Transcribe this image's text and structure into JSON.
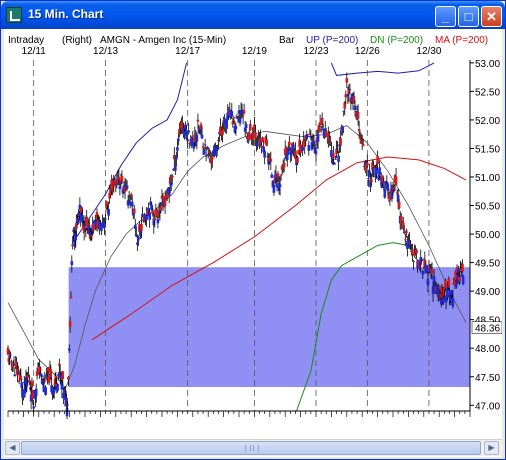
{
  "window": {
    "title": "15 Min. Chart",
    "min_label": "_",
    "max_label": "□",
    "close_label": "✕",
    "icon": "chart-app-icon"
  },
  "header": {
    "period": "Intraday",
    "axis_side": "(Right)",
    "instrument": "AMGN - Amgen Inc  (15-Min)",
    "style": "Bar",
    "up_label": "UP (P=200)",
    "dn_label": "DN (P=200)",
    "ma_label": "MA (P=200)"
  },
  "colors": {
    "up_band": "#1f1fa8",
    "dn_band": "#1a8a1a",
    "ma": "#d01010",
    "thin_line": "#555555",
    "bar_up": "#1e2bd8",
    "bar_down": "#d41c1c",
    "highlight": "#7c7cf2"
  },
  "chart_data": {
    "type": "bar",
    "y_axis_side": "right",
    "ylim": [
      46.9,
      53.05
    ],
    "y_ticks": [
      "53.00",
      "52.50",
      "52.00",
      "51.50",
      "51.00",
      "50.50",
      "50.00",
      "49.50",
      "49.00",
      "48.50",
      "48.00",
      "47.50",
      "47.00"
    ],
    "current_price": "48.36",
    "date_ticks": [
      "12/11",
      "12/13",
      "12/17",
      "12/19",
      "12/23",
      "12/26",
      "12/30"
    ],
    "highlight_zone": {
      "low": 47.32,
      "high": 49.42
    },
    "price_series": [
      {
        "t": 0.0,
        "p": 47.85
      },
      {
        "t": 0.5,
        "p": 47.7
      },
      {
        "t": 1.0,
        "p": 47.55
      },
      {
        "t": 1.5,
        "p": 47.25
      },
      {
        "t": 2.0,
        "p": 47.5
      },
      {
        "t": 2.5,
        "p": 47.1
      },
      {
        "t": 3.0,
        "p": 47.65
      },
      {
        "t": 3.5,
        "p": 47.35
      },
      {
        "t": 4.0,
        "p": 47.5
      },
      {
        "t": 4.5,
        "p": 47.3
      },
      {
        "t": 5.0,
        "p": 47.6
      },
      {
        "t": 5.5,
        "p": 47.2
      },
      {
        "t": 5.8,
        "p": 47.05
      },
      {
        "t": 6.3,
        "p": 49.9
      },
      {
        "t": 6.6,
        "p": 50.1
      },
      {
        "t": 7.0,
        "p": 50.4
      },
      {
        "t": 7.5,
        "p": 50.1
      },
      {
        "t": 8.0,
        "p": 50.0
      },
      {
        "t": 8.5,
        "p": 50.2
      },
      {
        "t": 9.0,
        "p": 50.15
      },
      {
        "t": 9.6,
        "p": 50.35
      },
      {
        "t": 10.2,
        "p": 50.85
      },
      {
        "t": 10.8,
        "p": 50.95
      },
      {
        "t": 11.4,
        "p": 50.8
      },
      {
        "t": 12.0,
        "p": 50.6
      },
      {
        "t": 12.6,
        "p": 49.9
      },
      {
        "t": 13.2,
        "p": 50.3
      },
      {
        "t": 13.8,
        "p": 50.5
      },
      {
        "t": 14.4,
        "p": 50.3
      },
      {
        "t": 15.0,
        "p": 50.5
      },
      {
        "t": 15.6,
        "p": 50.7
      },
      {
        "t": 16.2,
        "p": 51.2
      },
      {
        "t": 16.8,
        "p": 51.9
      },
      {
        "t": 17.4,
        "p": 51.8
      },
      {
        "t": 18.0,
        "p": 51.6
      },
      {
        "t": 18.6,
        "p": 51.9
      },
      {
        "t": 19.2,
        "p": 51.5
      },
      {
        "t": 19.8,
        "p": 51.3
      },
      {
        "t": 20.4,
        "p": 51.6
      },
      {
        "t": 21.0,
        "p": 51.9
      },
      {
        "t": 21.6,
        "p": 52.1
      },
      {
        "t": 22.2,
        "p": 51.9
      },
      {
        "t": 22.8,
        "p": 52.2
      },
      {
        "t": 23.4,
        "p": 51.7
      },
      {
        "t": 24.0,
        "p": 51.8
      },
      {
        "t": 24.6,
        "p": 51.55
      },
      {
        "t": 25.2,
        "p": 51.5
      },
      {
        "t": 25.8,
        "p": 51.0
      },
      {
        "t": 26.4,
        "p": 50.9
      },
      {
        "t": 27.0,
        "p": 51.3
      },
      {
        "t": 27.6,
        "p": 51.5
      },
      {
        "t": 28.2,
        "p": 51.35
      },
      {
        "t": 28.8,
        "p": 51.6
      },
      {
        "t": 29.4,
        "p": 51.7
      },
      {
        "t": 30.0,
        "p": 51.5
      },
      {
        "t": 30.6,
        "p": 52.0
      },
      {
        "t": 31.2,
        "p": 51.7
      },
      {
        "t": 31.8,
        "p": 51.3
      },
      {
        "t": 32.4,
        "p": 51.6
      },
      {
        "t": 33.0,
        "p": 52.6
      },
      {
        "t": 33.6,
        "p": 52.3
      },
      {
        "t": 34.2,
        "p": 51.9
      },
      {
        "t": 34.8,
        "p": 51.2
      },
      {
        "t": 35.4,
        "p": 51.0
      },
      {
        "t": 36.0,
        "p": 51.2
      },
      {
        "t": 36.6,
        "p": 50.9
      },
      {
        "t": 37.2,
        "p": 50.7
      },
      {
        "t": 37.8,
        "p": 50.8
      },
      {
        "t": 38.4,
        "p": 50.1
      },
      {
        "t": 39.0,
        "p": 49.8
      },
      {
        "t": 39.6,
        "p": 49.6
      },
      {
        "t": 40.2,
        "p": 49.5
      },
      {
        "t": 40.8,
        "p": 49.35
      },
      {
        "t": 41.4,
        "p": 49.2
      },
      {
        "t": 42.0,
        "p": 49.0
      },
      {
        "t": 42.4,
        "p": 48.8
      },
      {
        "t": 42.8,
        "p": 49.1
      },
      {
        "t": 43.2,
        "p": 48.9
      },
      {
        "t": 43.6,
        "p": 49.2
      },
      {
        "t": 44.0,
        "p": 49.3
      },
      {
        "t": 44.4,
        "p": 49.4
      }
    ],
    "series": [
      {
        "name": "UP (P=200)",
        "line": "up",
        "points": [
          {
            "t": 6.5,
            "p": 49.9
          },
          {
            "t": 8.0,
            "p": 50.3
          },
          {
            "t": 9.5,
            "p": 50.7
          },
          {
            "t": 11.0,
            "p": 51.2
          },
          {
            "t": 12.5,
            "p": 51.6
          },
          {
            "t": 14.0,
            "p": 51.85
          },
          {
            "t": 15.5,
            "p": 52.0
          },
          {
            "t": 16.5,
            "p": 52.35
          },
          {
            "t": 17.4,
            "p": 53.0
          }
        ]
      },
      {
        "name": "UP (P=200)",
        "line": "up2",
        "points": [
          {
            "t": 31.5,
            "p": 53.0
          },
          {
            "t": 32.0,
            "p": 52.78
          },
          {
            "t": 34.0,
            "p": 52.82
          },
          {
            "t": 36.0,
            "p": 52.85
          },
          {
            "t": 38.0,
            "p": 52.82
          },
          {
            "t": 40.0,
            "p": 52.86
          },
          {
            "t": 41.0,
            "p": 52.95
          },
          {
            "t": 41.5,
            "p": 53.0
          }
        ]
      },
      {
        "name": "DN (P=200)",
        "line": "dn",
        "points": [
          {
            "t": 28.1,
            "p": 46.9
          },
          {
            "t": 29.5,
            "p": 47.6
          },
          {
            "t": 30.5,
            "p": 48.6
          },
          {
            "t": 31.5,
            "p": 49.2
          },
          {
            "t": 32.5,
            "p": 49.45
          },
          {
            "t": 34.0,
            "p": 49.6
          },
          {
            "t": 36.0,
            "p": 49.8
          },
          {
            "t": 37.5,
            "p": 49.85
          },
          {
            "t": 39.0,
            "p": 49.8
          },
          {
            "t": 39.8,
            "p": 49.55
          }
        ]
      },
      {
        "name": "MA (P=200)",
        "line": "ma",
        "points": [
          {
            "t": 8.2,
            "p": 48.15
          },
          {
            "t": 12.0,
            "p": 48.6
          },
          {
            "t": 16.0,
            "p": 49.1
          },
          {
            "t": 20.0,
            "p": 49.5
          },
          {
            "t": 24.0,
            "p": 49.95
          },
          {
            "t": 28.0,
            "p": 50.5
          },
          {
            "t": 31.0,
            "p": 50.95
          },
          {
            "t": 34.0,
            "p": 51.25
          },
          {
            "t": 37.0,
            "p": 51.35
          },
          {
            "t": 40.0,
            "p": 51.3
          },
          {
            "t": 42.5,
            "p": 51.15
          },
          {
            "t": 44.6,
            "p": 50.95
          }
        ]
      },
      {
        "line": "thin",
        "points": [
          {
            "t": 0.0,
            "p": 48.8
          },
          {
            "t": 1.5,
            "p": 48.3
          },
          {
            "t": 3.0,
            "p": 47.8
          },
          {
            "t": 4.5,
            "p": 47.55
          },
          {
            "t": 5.6,
            "p": 47.3
          },
          {
            "t": 6.5,
            "p": 47.7
          },
          {
            "t": 7.5,
            "p": 48.4
          },
          {
            "t": 8.5,
            "p": 49.0
          },
          {
            "t": 10.0,
            "p": 49.6
          },
          {
            "t": 11.5,
            "p": 50.0
          },
          {
            "t": 13.0,
            "p": 50.25
          },
          {
            "t": 14.5,
            "p": 50.45
          },
          {
            "t": 16.0,
            "p": 50.7
          },
          {
            "t": 17.5,
            "p": 51.1
          },
          {
            "t": 19.0,
            "p": 51.35
          },
          {
            "t": 21.0,
            "p": 51.55
          },
          {
            "t": 23.0,
            "p": 51.7
          },
          {
            "t": 25.0,
            "p": 51.8
          },
          {
            "t": 27.0,
            "p": 51.75
          },
          {
            "t": 29.0,
            "p": 51.7
          },
          {
            "t": 31.0,
            "p": 51.75
          },
          {
            "t": 33.0,
            "p": 51.9
          },
          {
            "t": 35.0,
            "p": 51.6
          },
          {
            "t": 37.0,
            "p": 51.1
          },
          {
            "t": 39.0,
            "p": 50.5
          },
          {
            "t": 41.0,
            "p": 49.8
          },
          {
            "t": 43.0,
            "p": 49.0
          },
          {
            "t": 44.6,
            "p": 48.45
          }
        ]
      }
    ]
  }
}
